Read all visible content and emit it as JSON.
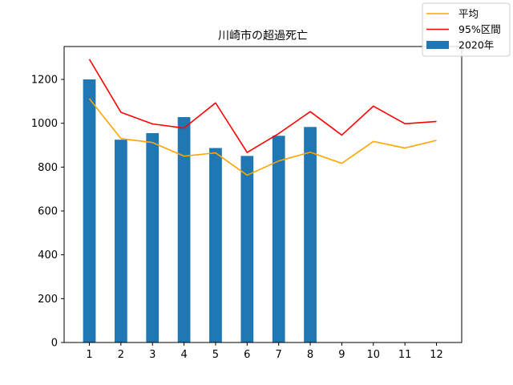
{
  "chart_data": {
    "type": "bar",
    "title": "川崎市の超過死亡",
    "xlabel": "",
    "ylabel": "",
    "categories": [
      "1",
      "2",
      "3",
      "4",
      "5",
      "6",
      "7",
      "8",
      "9",
      "10",
      "11",
      "12"
    ],
    "ylim": [
      0,
      1350
    ],
    "yticks": [
      "0",
      "200",
      "400",
      "600",
      "800",
      "1000",
      "1200"
    ],
    "grid": false,
    "legend_position": "top-right",
    "series": [
      {
        "name": "平均",
        "type": "line",
        "color": "#ffa500",
        "values": [
          1112,
          930,
          912,
          850,
          865,
          763,
          828,
          868,
          817,
          917,
          887,
          922
        ]
      },
      {
        "name": "95%区間",
        "type": "line",
        "color": "#ff0000",
        "values": [
          1292,
          1050,
          997,
          978,
          1093,
          867,
          953,
          1053,
          946,
          1078,
          998,
          1008
        ]
      },
      {
        "name": "2020年",
        "type": "bar",
        "color": "#1f77b4",
        "values": [
          1200,
          925,
          955,
          1028,
          887,
          851,
          943,
          983,
          null,
          null,
          null,
          null
        ]
      }
    ]
  }
}
